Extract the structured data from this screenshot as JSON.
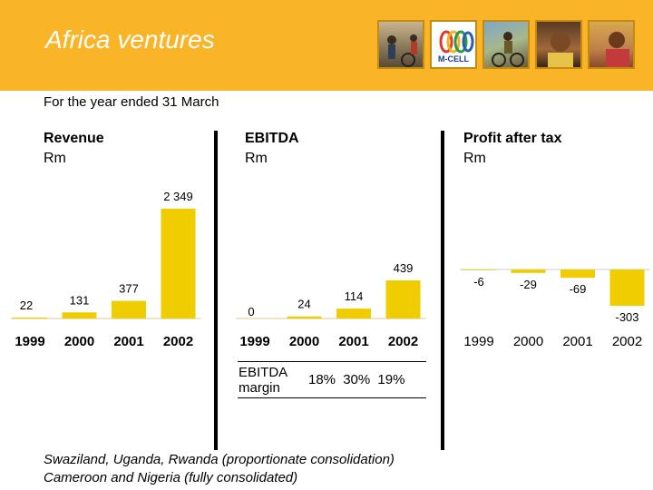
{
  "header": {
    "title": "Africa ventures",
    "photos": [
      {
        "name": "street-scene-photo"
      },
      {
        "name": "m-cell-logo",
        "text": "M-CELL"
      },
      {
        "name": "cyclist-photo"
      },
      {
        "name": "portrait-photo"
      },
      {
        "name": "child-photo"
      }
    ]
  },
  "subtitle": "For the year ended 31 March",
  "colors": {
    "bar": "#f0cd00",
    "header": "#f9b428"
  },
  "chart_data": [
    {
      "type": "bar",
      "title": "Revenue",
      "unit": "Rm",
      "categories": [
        "1999",
        "2000",
        "2001",
        "2002"
      ],
      "values": [
        22,
        131,
        377,
        2349
      ],
      "value_labels": [
        "22",
        "131",
        "377",
        "2 349"
      ]
    },
    {
      "type": "bar",
      "title": "EBITDA",
      "unit": "Rm",
      "categories": [
        "1999",
        "2000",
        "2001",
        "2002"
      ],
      "values": [
        0,
        24,
        114,
        439
      ],
      "value_labels": [
        "0",
        "24",
        "114",
        "439"
      ]
    },
    {
      "type": "bar",
      "title": "Profit after tax",
      "unit": "Rm",
      "categories": [
        "1999",
        "2000",
        "2001",
        "2002"
      ],
      "values": [
        -6,
        -29,
        -69,
        -303
      ],
      "value_labels": [
        "-6",
        "-29",
        "-69",
        "-303"
      ]
    }
  ],
  "ebitda_margin": {
    "label_line1": "EBITDA",
    "label_line2": "margin",
    "values": "18%  30%  19%"
  },
  "footnote": {
    "line1": "Swaziland, Uganda, Rwanda (proportionate consolidation)",
    "line2": "Cameroon and Nigeria (fully consolidated)"
  }
}
